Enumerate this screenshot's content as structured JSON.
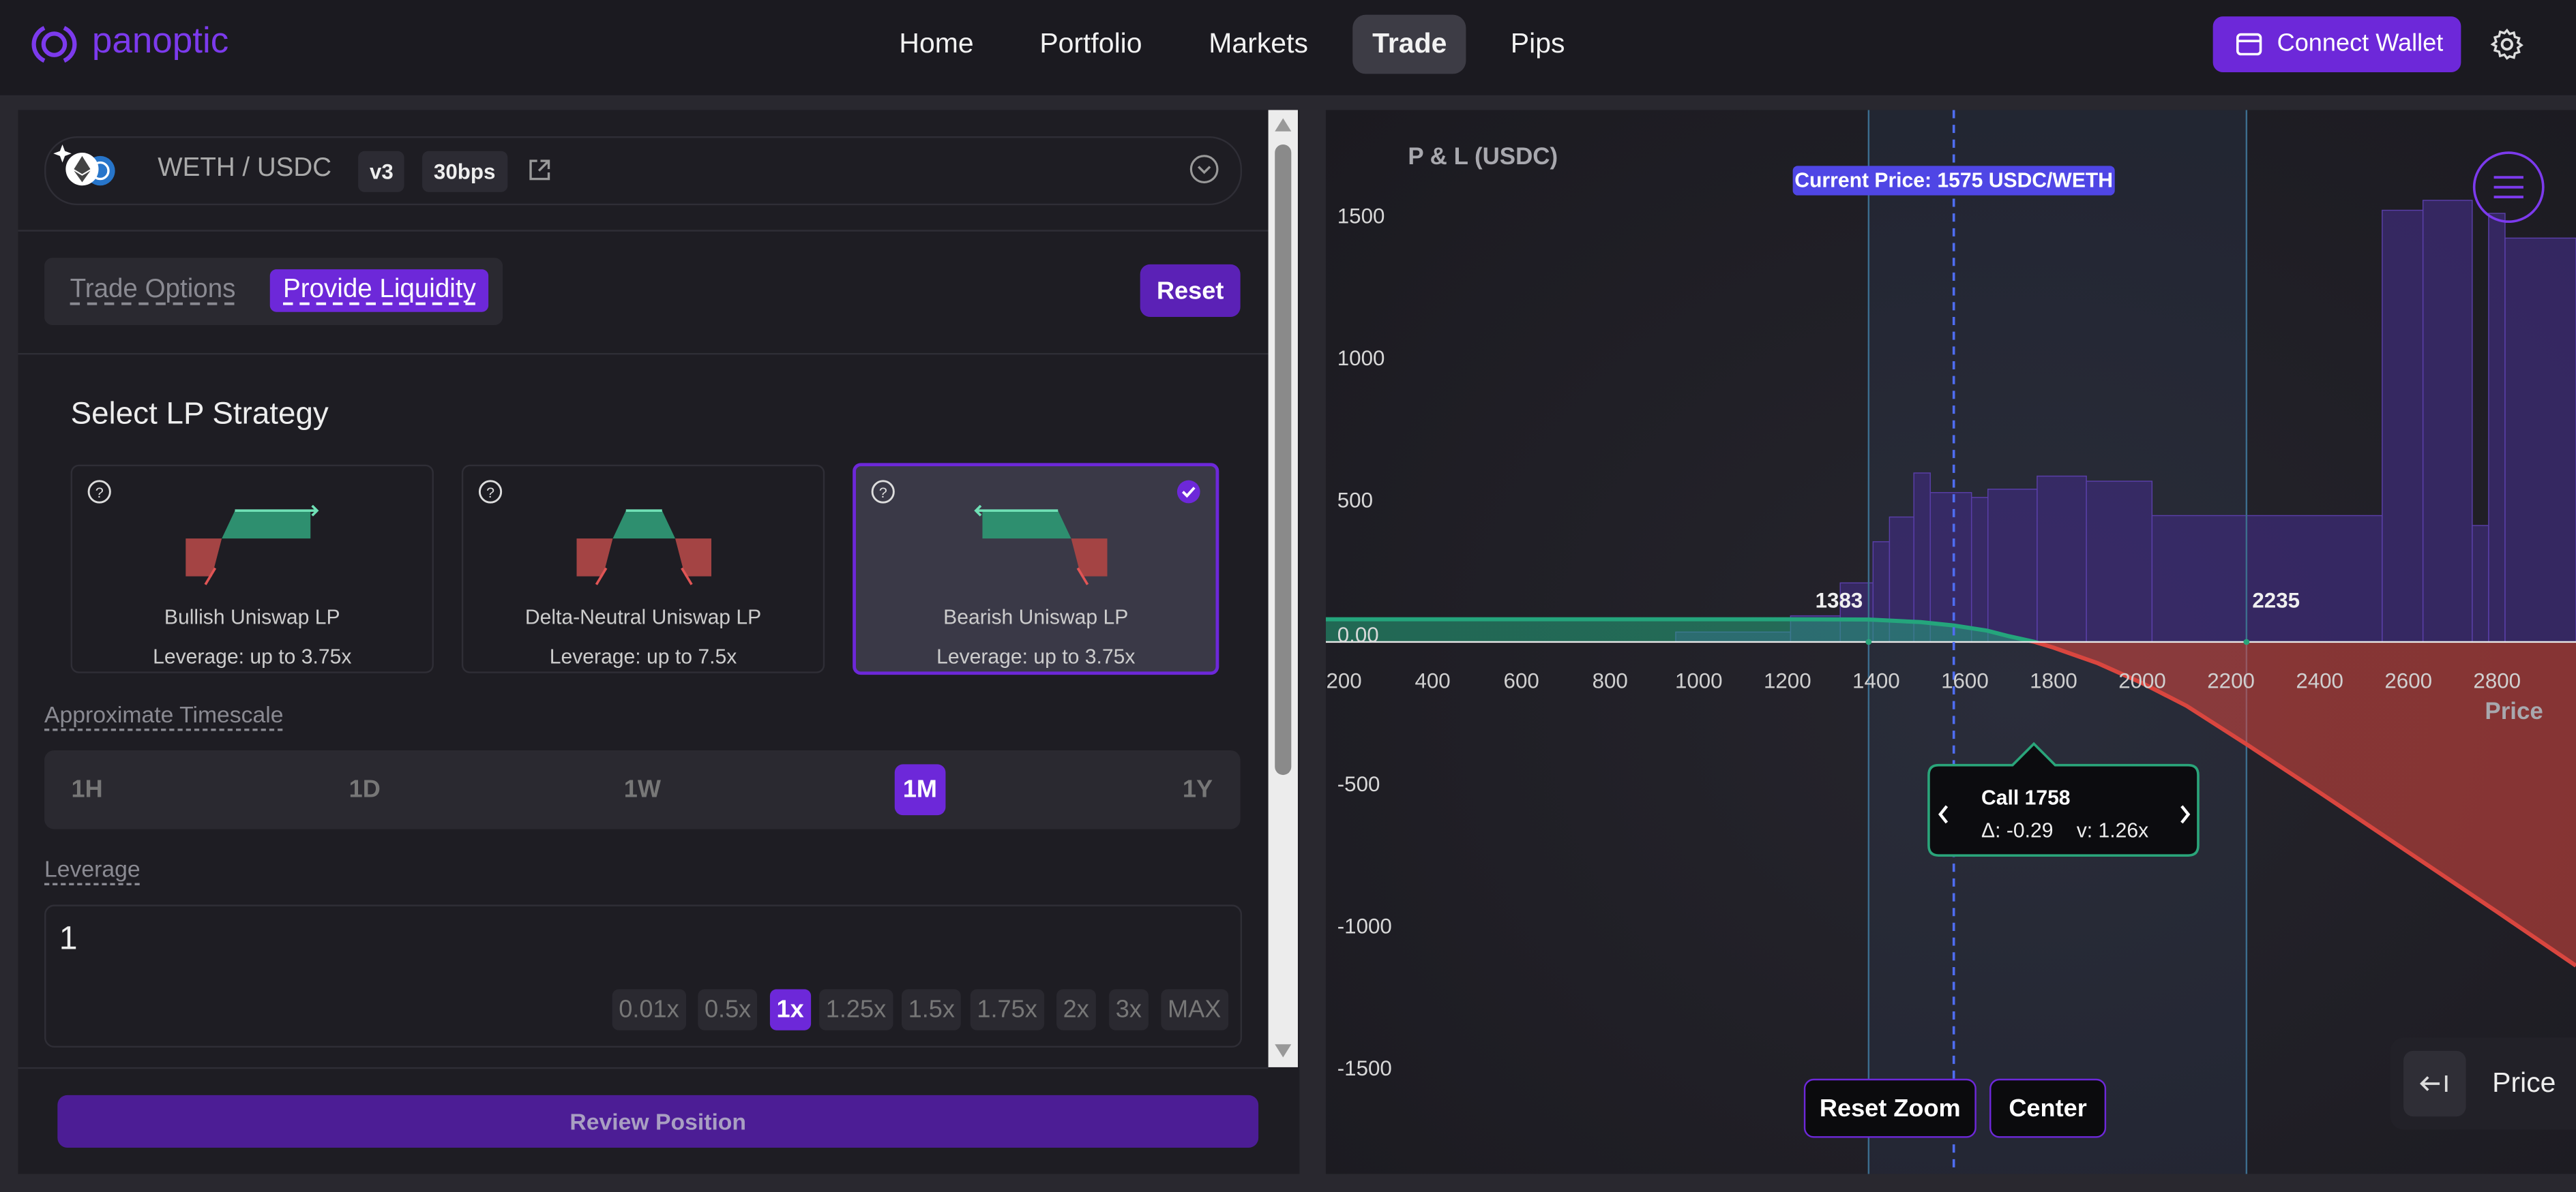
{
  "nav": {
    "logo": "panoptic",
    "links": [
      "Home",
      "Portfolio",
      "Markets",
      "Trade",
      "Pips"
    ],
    "active": 3,
    "wallet": "Connect Wallet"
  },
  "pair": {
    "name": "WETH / USDC",
    "version": "v3",
    "fee": "30bps"
  },
  "mode": {
    "tabs": [
      "Trade Options",
      "Provide Liquidity"
    ],
    "active": 1,
    "reset": "Reset"
  },
  "strategy": {
    "title": "Select LP Strategy",
    "cards": [
      {
        "name": "Bullish Uniswap LP",
        "leverage": "Leverage: up to 3.75x"
      },
      {
        "name": "Delta-Neutral Uniswap LP",
        "leverage": "Leverage: up to 7.5x"
      },
      {
        "name": "Bearish Uniswap LP",
        "leverage": "Leverage: up to 3.75x"
      }
    ],
    "selected": 2
  },
  "timescale": {
    "label": "Approximate Timescale",
    "options": [
      "1H",
      "1D",
      "1W",
      "1M",
      "1Y"
    ],
    "active": 3
  },
  "leverage": {
    "label": "Leverage",
    "input": 1,
    "presets": [
      "0.01x",
      "0.5x",
      "1x",
      "1.25x",
      "1.5x",
      "1.75x",
      "2x",
      "3x",
      "MAX"
    ],
    "active": 2
  },
  "review": "Review Position",
  "chart_controls": {
    "reset_zoom": "Reset Zoom",
    "center": "Center",
    "axis_toggle": "Price"
  },
  "chart_data": {
    "type": "line",
    "title": "P & L (USDC)",
    "x_label": "Price",
    "xlim": [
      159,
      2978
    ],
    "ylim": [
      -1873,
      1873
    ],
    "xticks": [
      200,
      400,
      600,
      800,
      1000,
      1200,
      1400,
      1600,
      1800,
      2000,
      2200,
      2400,
      2600,
      2800
    ],
    "yticks": [
      1500,
      1000,
      500,
      {
        "value": 0,
        "label": "0.00"
      },
      -500,
      -1000,
      -1500
    ],
    "x": [
      159,
      400,
      800,
      1000,
      1200,
      1383,
      1500,
      1575,
      1650,
      1700,
      1758,
      1800,
      1900,
      2000,
      2100,
      2235,
      2400,
      2600,
      2800,
      2978
    ],
    "values": [
      80,
      80,
      80,
      80,
      80,
      79,
      70,
      58,
      40,
      20,
      0,
      -20,
      -75,
      -145,
      -225,
      -360,
      -530,
      -740,
      -950,
      -1140
    ],
    "line_colors": {
      "gain": "#24a57c",
      "loss": "#d9463f"
    },
    "histogram": {
      "bins": [
        948,
        1207,
        1319,
        1393,
        1430,
        1485,
        1522,
        1615,
        1652,
        1763,
        1874,
        2022,
        2541,
        2633,
        2744,
        2781,
        2818,
        2978
      ],
      "counts": [
        35,
        92,
        208,
        353,
        440,
        595,
        526,
        509,
        538,
        584,
        566,
        445,
        1520,
        1555,
        410,
        1509,
        1422
      ],
      "color": "#3b2a70"
    },
    "range": [
      1383,
      2235
    ],
    "current_price": {
      "value": 1575,
      "label": "Current Price: 1575 USDC/WETH"
    },
    "tooltip": {
      "title": "Call 1758",
      "delta": "Δ: -0.29",
      "vega": "v: 1.26x"
    }
  }
}
